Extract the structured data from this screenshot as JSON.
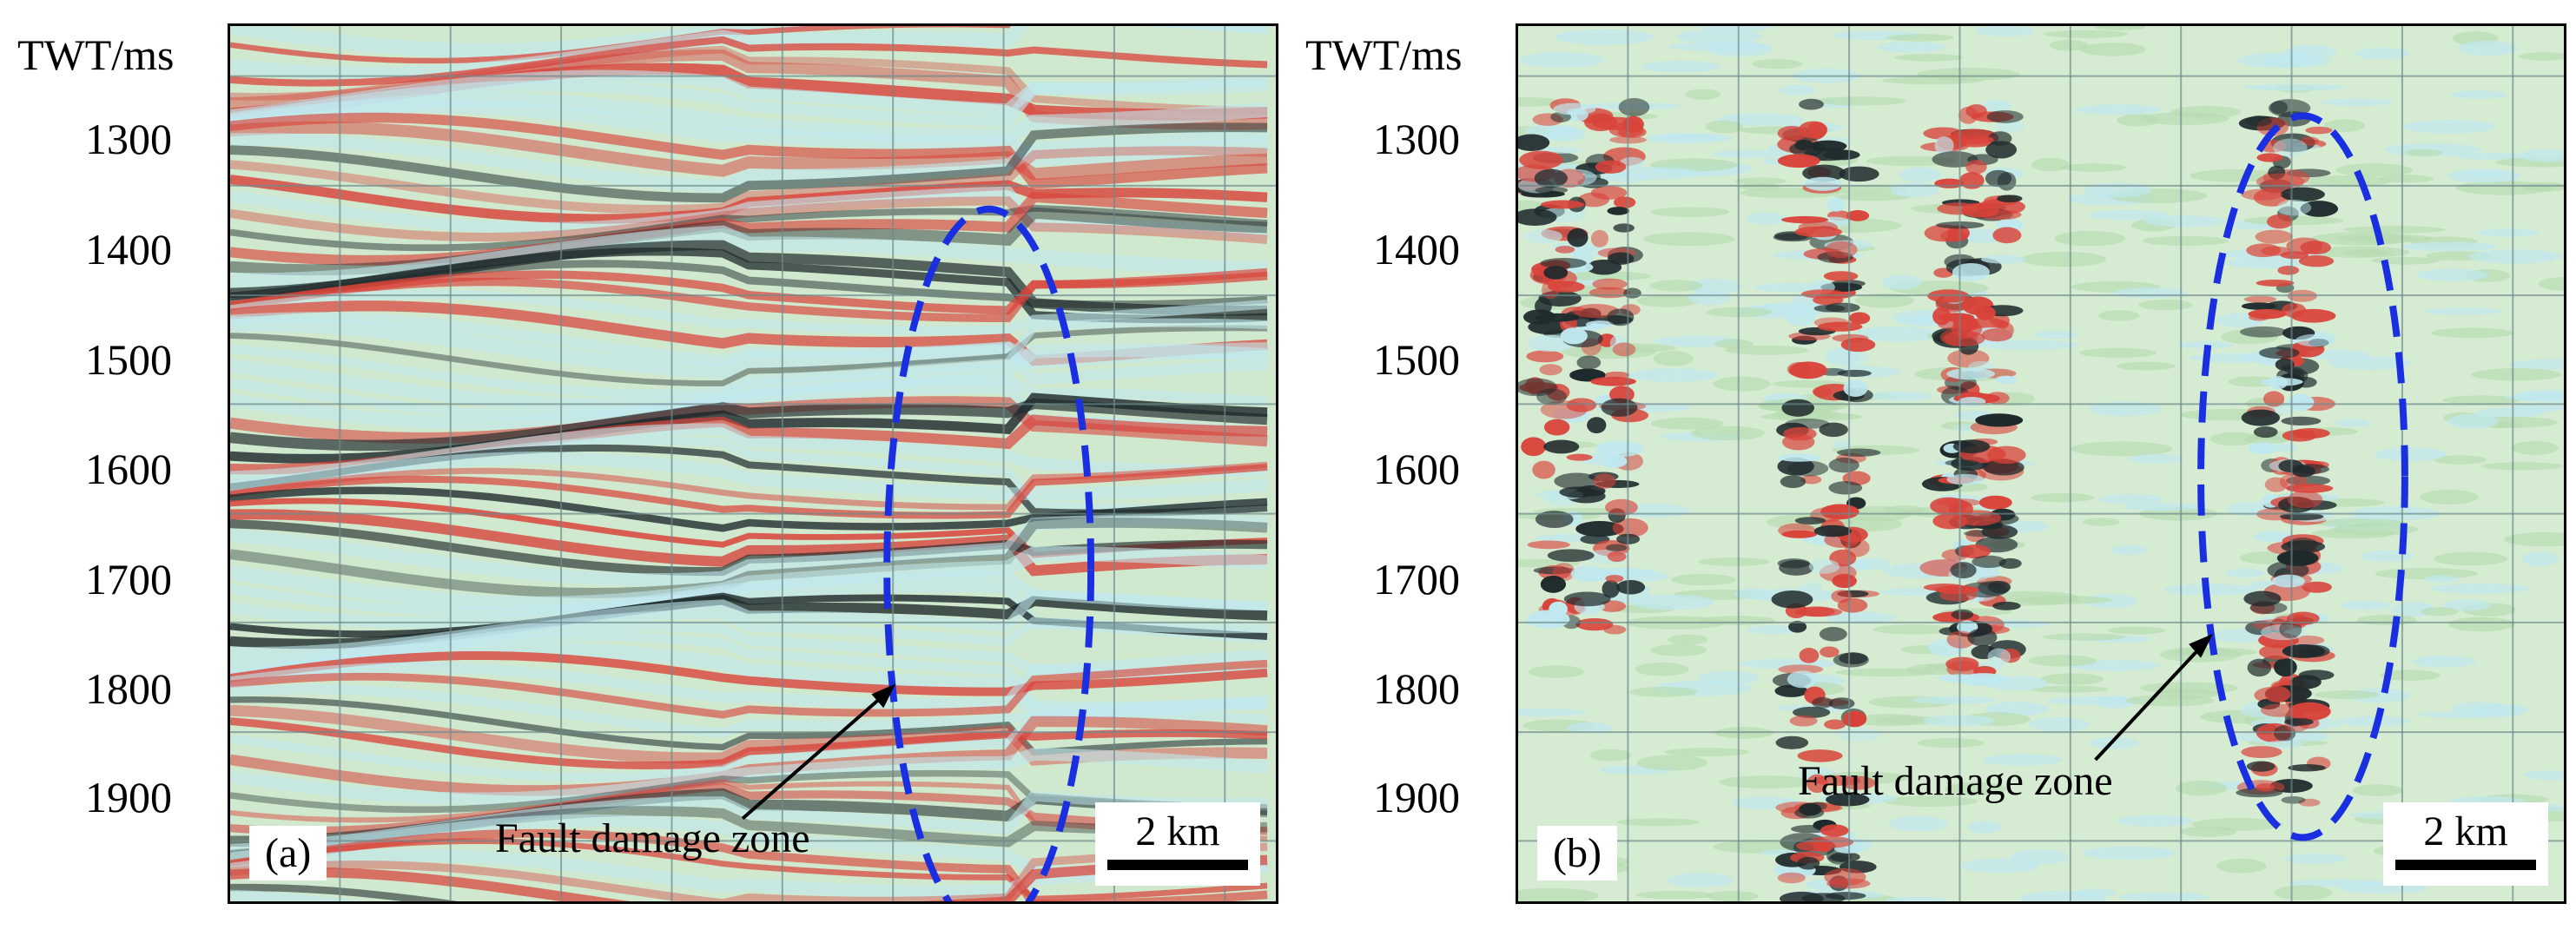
{
  "panels": [
    {
      "id": "a",
      "tag": "(a)",
      "y_axis_title": "TWT/ms",
      "ticks": [
        "1300",
        "1400",
        "1500",
        "1600",
        "1700",
        "1800",
        "1900"
      ],
      "scale_label": "2 km",
      "annotation": "Fault damage zone",
      "colors": {
        "background": "#cfe8ce",
        "positive": "#d9433a",
        "negative": "#1f2a2c",
        "pale": "#bfe8ef",
        "ellipse": "#1a2fe0"
      }
    },
    {
      "id": "b",
      "tag": "(b)",
      "y_axis_title": "TWT/ms",
      "ticks": [
        "1300",
        "1400",
        "1500",
        "1600",
        "1700",
        "1800",
        "1900"
      ],
      "scale_label": "2 km",
      "annotation": "Fault damage zone",
      "colors": {
        "background": "#d6ecd2",
        "positive": "#d9433a",
        "negative": "#1f2a2c",
        "pale": "#bfe8ef",
        "ellipse": "#1a2fe0"
      }
    }
  ]
}
